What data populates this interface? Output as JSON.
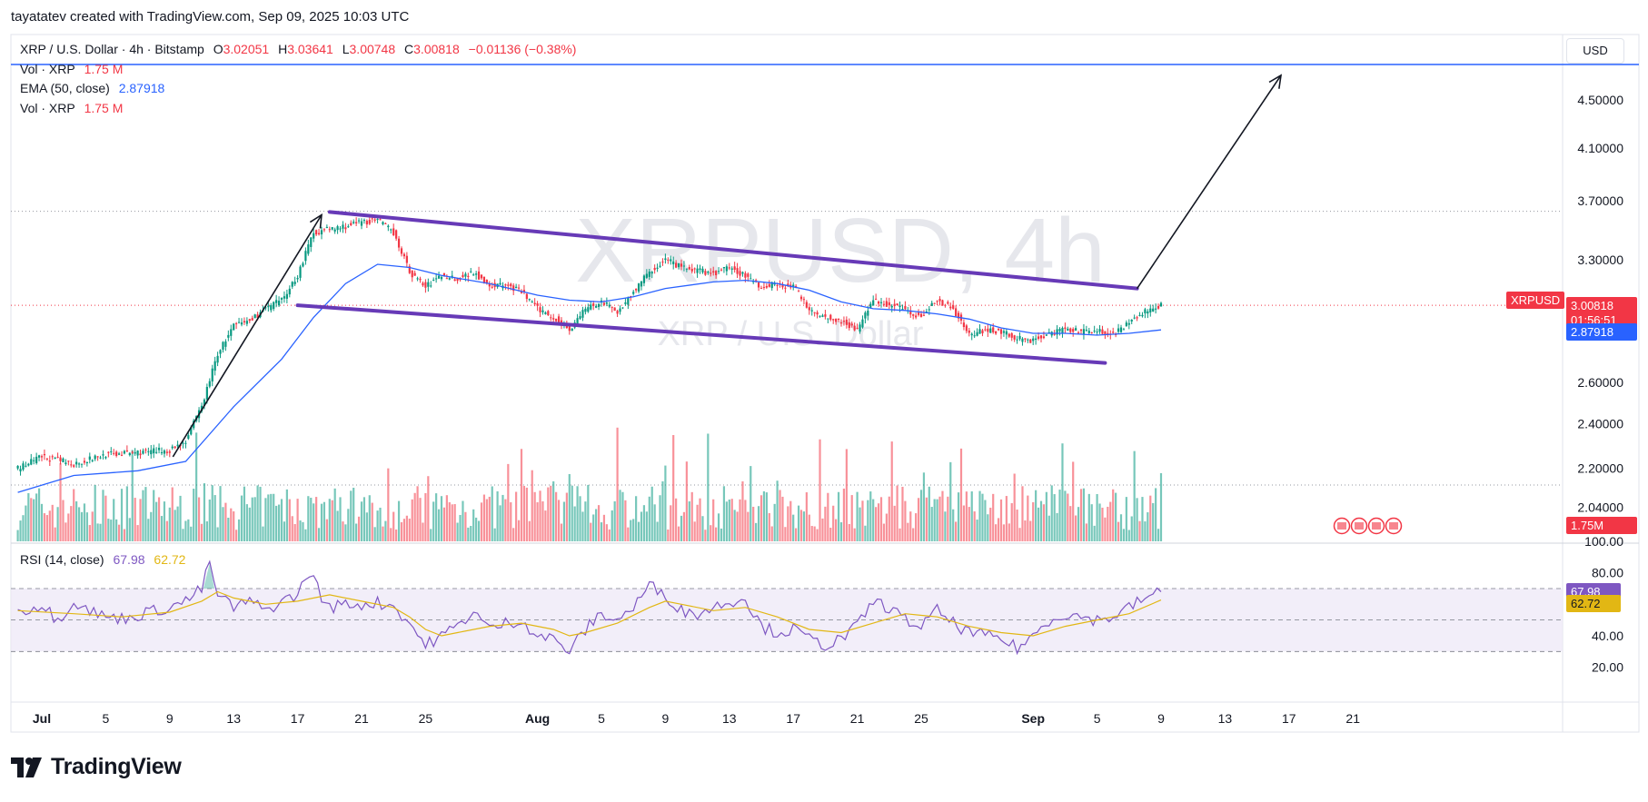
{
  "header": {
    "attribution": "tayatatev created with TradingView.com, Sep 09, 2025 10:03 UTC"
  },
  "legend": {
    "symbol": "XRP / U.S. Dollar · 4h · Bitstamp",
    "o_label": "O",
    "o": "3.02051",
    "h_label": "H",
    "h": "3.03641",
    "l_label": "L",
    "l": "3.00748",
    "c_label": "C",
    "c": "3.00818",
    "change": "−0.01136 (−0.38%)",
    "vol1_label": "Vol · XRP",
    "vol1": "1.75 M",
    "ema_label": "EMA (50, close)",
    "ema": "2.87918",
    "vol2_label": "Vol · XRP",
    "vol2": "1.75 M"
  },
  "rsi_legend": {
    "label": "RSI (14, close)",
    "rsi": "67.98",
    "ma": "62.72"
  },
  "watermark": {
    "title": "XRPUSD, 4h",
    "subtitle": "XRP / U.S. Dollar"
  },
  "currency_button": "USD",
  "price_tags": {
    "symbol": "XRPUSD",
    "last": "3.00818",
    "countdown": "01:56:51",
    "ema": "2.87918",
    "volume": "1.75M",
    "rsi": "67.98",
    "rsi_ma": "62.72"
  },
  "footer": {
    "brand": "TradingView"
  },
  "colors": {
    "up": "#089981",
    "down": "#f23645",
    "ema": "#2962ff",
    "channel": "#673ab7",
    "rsi": "#7e57c2",
    "rsi_ma": "#e2b714",
    "rsi_band": "#ede7f6",
    "level_line": "#2962ff"
  },
  "chart_data": {
    "type": "candlestick",
    "symbol": "XRPUSD",
    "timeframe": "4h",
    "y_axis": {
      "scale": "log",
      "ticks": [
        "4.50000",
        "4.10000",
        "3.70000",
        "3.30000",
        "2.60000",
        "2.40000",
        "2.20000",
        "2.04000"
      ],
      "tick_values": [
        4.5,
        4.1,
        3.7,
        3.3,
        2.6,
        2.4,
        2.2,
        2.04
      ]
    },
    "x_axis": {
      "ticks": [
        "Jul",
        "5",
        "9",
        "13",
        "17",
        "21",
        "25",
        "Aug",
        "5",
        "9",
        "13",
        "17",
        "21",
        "25",
        "Sep",
        "5",
        "9",
        "13",
        "17",
        "21"
      ],
      "tick_days": [
        0,
        4,
        8,
        12,
        16,
        20,
        24,
        31,
        35,
        39,
        43,
        47,
        51,
        55,
        62,
        66,
        70,
        74,
        78,
        82
      ]
    },
    "rsi_axis": {
      "ticks": [
        "100.00",
        "80.00",
        "40.00",
        "20.00"
      ],
      "tick_values": [
        100,
        80,
        40,
        20
      ],
      "band": [
        30,
        70
      ],
      "mid": 50
    },
    "price_path": [
      [
        -1.5,
        2.2
      ],
      [
        0,
        2.25
      ],
      [
        2,
        2.22
      ],
      [
        4,
        2.26
      ],
      [
        6,
        2.27
      ],
      [
        8,
        2.28
      ],
      [
        9,
        2.32
      ],
      [
        10,
        2.48
      ],
      [
        11,
        2.75
      ],
      [
        12,
        2.9
      ],
      [
        13,
        2.93
      ],
      [
        14,
        3.0
      ],
      [
        15,
        3.05
      ],
      [
        16,
        3.2
      ],
      [
        17,
        3.48
      ],
      [
        18,
        3.5
      ],
      [
        19,
        3.52
      ],
      [
        20,
        3.55
      ],
      [
        21,
        3.56
      ],
      [
        22,
        3.48
      ],
      [
        23,
        3.22
      ],
      [
        24,
        3.13
      ],
      [
        25,
        3.2
      ],
      [
        26,
        3.18
      ],
      [
        27,
        3.22
      ],
      [
        28,
        3.14
      ],
      [
        29,
        3.14
      ],
      [
        30,
        3.1
      ],
      [
        31,
        3.0
      ],
      [
        32,
        2.95
      ],
      [
        33,
        2.88
      ],
      [
        34,
        3.0
      ],
      [
        35,
        3.04
      ],
      [
        36,
        2.98
      ],
      [
        37,
        3.1
      ],
      [
        38,
        3.22
      ],
      [
        39,
        3.3
      ],
      [
        40,
        3.25
      ],
      [
        41,
        3.23
      ],
      [
        42,
        3.21
      ],
      [
        43,
        3.25
      ],
      [
        44,
        3.2
      ],
      [
        45,
        3.13
      ],
      [
        46,
        3.15
      ],
      [
        47,
        3.13
      ],
      [
        48,
        3.0
      ],
      [
        49,
        2.95
      ],
      [
        50,
        2.93
      ],
      [
        51,
        2.88
      ],
      [
        52,
        3.05
      ],
      [
        53,
        3.02
      ],
      [
        54,
        3.0
      ],
      [
        55,
        2.95
      ],
      [
        56,
        3.05
      ],
      [
        57,
        3.0
      ],
      [
        58,
        2.85
      ],
      [
        59,
        2.88
      ],
      [
        60,
        2.87
      ],
      [
        61,
        2.83
      ],
      [
        62,
        2.82
      ],
      [
        63,
        2.86
      ],
      [
        64,
        2.88
      ],
      [
        65,
        2.87
      ],
      [
        66,
        2.88
      ],
      [
        67,
        2.85
      ],
      [
        68,
        2.92
      ],
      [
        69,
        2.98
      ],
      [
        70,
        3.02
      ]
    ],
    "ema_50": [
      [
        -1.5,
        2.1
      ],
      [
        2,
        2.17
      ],
      [
        6,
        2.19
      ],
      [
        9,
        2.23
      ],
      [
        12,
        2.48
      ],
      [
        15,
        2.72
      ],
      [
        17,
        2.95
      ],
      [
        19,
        3.15
      ],
      [
        21,
        3.27
      ],
      [
        23,
        3.25
      ],
      [
        25,
        3.2
      ],
      [
        28,
        3.15
      ],
      [
        31,
        3.08
      ],
      [
        33,
        3.05
      ],
      [
        35,
        3.04
      ],
      [
        37,
        3.07
      ],
      [
        39,
        3.12
      ],
      [
        42,
        3.16
      ],
      [
        44,
        3.17
      ],
      [
        46,
        3.15
      ],
      [
        48,
        3.11
      ],
      [
        50,
        3.04
      ],
      [
        52,
        3.0
      ],
      [
        54,
        2.99
      ],
      [
        56,
        2.97
      ],
      [
        58,
        2.94
      ],
      [
        60,
        2.89
      ],
      [
        62,
        2.86
      ],
      [
        64,
        2.86
      ],
      [
        66,
        2.85
      ],
      [
        68,
        2.86
      ],
      [
        70,
        2.879
      ]
    ],
    "channel_upper": [
      [
        18,
        3.62
      ],
      [
        68.5,
        3.12
      ]
    ],
    "channel_lower": [
      [
        16,
        3.02
      ],
      [
        66.5,
        2.7
      ]
    ],
    "arrow_impulse": [
      [
        8.2,
        2.25
      ],
      [
        17.5,
        3.6
      ]
    ],
    "arrow_projection": [
      [
        68.5,
        3.12
      ],
      [
        77.5,
        4.72
      ]
    ],
    "horizontal_level": 4.82,
    "dotted_levels": [
      3.625,
      3.02,
      2.13
    ],
    "last_price": 3.00818,
    "ema_value": 2.87918,
    "rsi_path": [
      [
        -1.5,
        55
      ],
      [
        0,
        60
      ],
      [
        1,
        50
      ],
      [
        2,
        62
      ],
      [
        3,
        56
      ],
      [
        4,
        52
      ],
      [
        5,
        51
      ],
      [
        6,
        53
      ],
      [
        7,
        56
      ],
      [
        8,
        58
      ],
      [
        9,
        62
      ],
      [
        10,
        70
      ],
      [
        10.5,
        86
      ],
      [
        11,
        66
      ],
      [
        12,
        58
      ],
      [
        13,
        62
      ],
      [
        14,
        56
      ],
      [
        15,
        62
      ],
      [
        16,
        66
      ],
      [
        16.8,
        82
      ],
      [
        17.5,
        64
      ],
      [
        18,
        58
      ],
      [
        19,
        60
      ],
      [
        20,
        60
      ],
      [
        21,
        61
      ],
      [
        22,
        59
      ],
      [
        23,
        48
      ],
      [
        24,
        34
      ],
      [
        25,
        40
      ],
      [
        26,
        46
      ],
      [
        27,
        56
      ],
      [
        28,
        44
      ],
      [
        29,
        48
      ],
      [
        30,
        50
      ],
      [
        31,
        40
      ],
      [
        32,
        38
      ],
      [
        33,
        30
      ],
      [
        34,
        44
      ],
      [
        35,
        54
      ],
      [
        36,
        50
      ],
      [
        37,
        58
      ],
      [
        38,
        72
      ],
      [
        39,
        66
      ],
      [
        40,
        56
      ],
      [
        41,
        54
      ],
      [
        42,
        58
      ],
      [
        43,
        62
      ],
      [
        44,
        64
      ],
      [
        45,
        46
      ],
      [
        46,
        42
      ],
      [
        47,
        44
      ],
      [
        48,
        38
      ],
      [
        49,
        34
      ],
      [
        50,
        38
      ],
      [
        51,
        46
      ],
      [
        52,
        62
      ],
      [
        53,
        58
      ],
      [
        54,
        50
      ],
      [
        55,
        46
      ],
      [
        56,
        56
      ],
      [
        57,
        48
      ],
      [
        58,
        42
      ],
      [
        59,
        40
      ],
      [
        60,
        38
      ],
      [
        61,
        32
      ],
      [
        62,
        40
      ],
      [
        63,
        50
      ],
      [
        64,
        54
      ],
      [
        65,
        52
      ],
      [
        66,
        50
      ],
      [
        67,
        52
      ],
      [
        68,
        58
      ],
      [
        69,
        64
      ],
      [
        70,
        67.98
      ]
    ],
    "rsi_ma_path": [
      [
        -1.5,
        56
      ],
      [
        2,
        54
      ],
      [
        5,
        52
      ],
      [
        8,
        55
      ],
      [
        10,
        62
      ],
      [
        11,
        68
      ],
      [
        12,
        64
      ],
      [
        14,
        60
      ],
      [
        16,
        62
      ],
      [
        18,
        66
      ],
      [
        20,
        62
      ],
      [
        22,
        58
      ],
      [
        23,
        52
      ],
      [
        24,
        44
      ],
      [
        25,
        40
      ],
      [
        26,
        42
      ],
      [
        28,
        46
      ],
      [
        30,
        48
      ],
      [
        32,
        44
      ],
      [
        33,
        40
      ],
      [
        34,
        42
      ],
      [
        36,
        48
      ],
      [
        38,
        58
      ],
      [
        39,
        62
      ],
      [
        40,
        60
      ],
      [
        42,
        56
      ],
      [
        44,
        58
      ],
      [
        46,
        52
      ],
      [
        48,
        44
      ],
      [
        50,
        42
      ],
      [
        52,
        48
      ],
      [
        54,
        54
      ],
      [
        56,
        52
      ],
      [
        58,
        46
      ],
      [
        60,
        42
      ],
      [
        62,
        40
      ],
      [
        64,
        46
      ],
      [
        66,
        50
      ],
      [
        68,
        54
      ],
      [
        70,
        62.72
      ]
    ],
    "volume_max": 3.8,
    "volume_last": 1.75
  }
}
